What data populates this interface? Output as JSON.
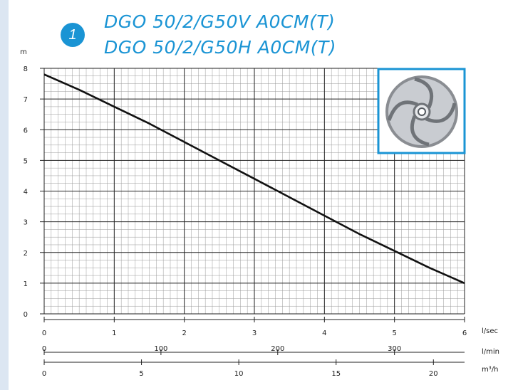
{
  "header": {
    "badge": "1",
    "model_line_1": "DGO 50/2/G50V A0CM(T)",
    "model_line_2": "DGO 50/2/G50H A0CM(T)"
  },
  "colors": {
    "accent": "#1a94d4",
    "curve": "#111111",
    "grid_major": "#222222",
    "grid_minor": "#9a9a9a",
    "left_strip": "#dce6f2"
  },
  "impeller_image": {
    "icon": "impeller-icon"
  },
  "chart_data": {
    "type": "line",
    "ylabel": "m",
    "ylim": [
      0,
      8
    ],
    "y_ticks": [
      "0",
      "1",
      "2",
      "3",
      "4",
      "5",
      "6",
      "7",
      "8"
    ],
    "grid": true,
    "x_axes": [
      {
        "unit": "l/sec",
        "range": [
          0,
          6
        ],
        "ticks": [
          "0",
          "1",
          "2",
          "3",
          "4",
          "5",
          "6"
        ]
      },
      {
        "unit": "l/min",
        "range": [
          0,
          360
        ],
        "ticks": [
          "0",
          "100",
          "200",
          "300"
        ]
      },
      {
        "unit": "m³/h",
        "range": [
          0,
          21.6
        ],
        "ticks": [
          "0",
          "5",
          "10",
          "15",
          "20"
        ]
      }
    ],
    "series": [
      {
        "x": [
          0,
          0.5,
          1,
          1.5,
          2,
          2.5,
          3,
          3.5,
          4,
          4.5,
          5,
          5.5,
          6
        ],
        "y": [
          7.8,
          7.3,
          6.75,
          6.2,
          5.6,
          5.0,
          4.4,
          3.8,
          3.2,
          2.6,
          2.05,
          1.5,
          1.0
        ]
      }
    ]
  }
}
